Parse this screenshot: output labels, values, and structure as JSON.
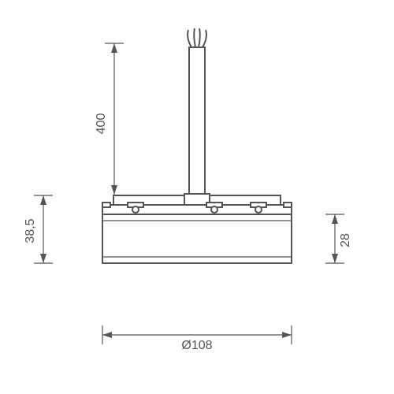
{
  "colors": {
    "stroke": "#555555",
    "bg": "#ffffff"
  },
  "dimensions": {
    "cable_height": "400",
    "body_height": "38,5",
    "inner_height": "28",
    "diameter": "Ø108"
  },
  "geom": {
    "topExtX": 145,
    "topExtTopY": 55,
    "topExtBotY": 247,
    "leftExtX": 55,
    "leftExtTopY": 248,
    "leftExtBotY": 334,
    "rightExtX": 425,
    "rightExtTopY": 272,
    "rightExtBotY": 334,
    "botExtY": 425,
    "botExtLeftX": 130,
    "botExtRightX": 370,
    "diagX1": 130,
    "diagX2": 370,
    "topPlateY": 248,
    "topPlateH": 12,
    "midBandY": 260,
    "midBandH": 12,
    "barrelY": 272,
    "barrelH": 62,
    "cableX1": 240,
    "cableX2": 260,
    "cableTop": 60,
    "cableBot": 248,
    "screws": [
      172,
      272,
      328
    ]
  }
}
